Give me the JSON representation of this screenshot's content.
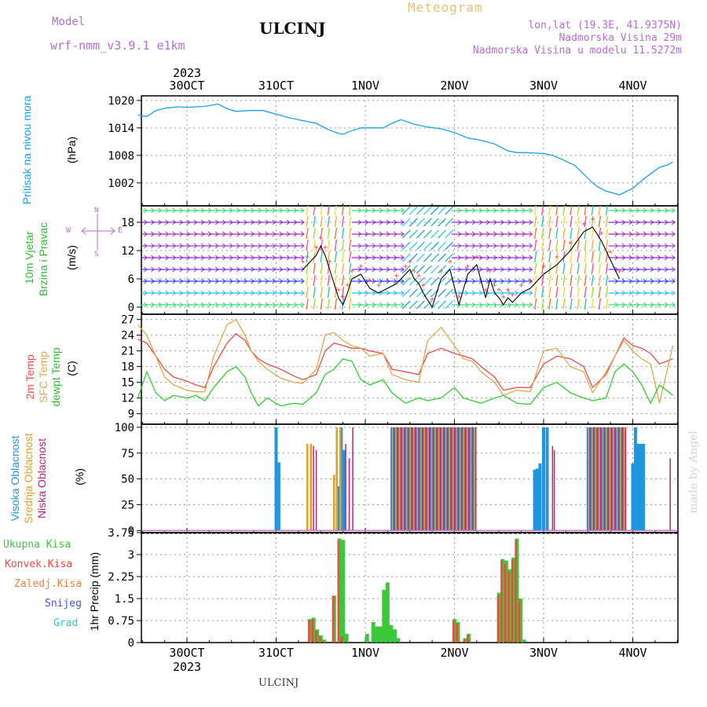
{
  "header": {
    "model_label": "Model",
    "model_name": "wrf-nmm_v3.9.1  e1km",
    "station": "ULCINJ",
    "product": "Meteogram",
    "lonlat": "lon,lat (19.3E, 41.9375N)",
    "elevation": "Nadmorska Visina 29m",
    "model_elevation": "Nadmorska Visina u modelu 11.5272m",
    "footer_station": "ULCINJ",
    "watermark": "made by Angel"
  },
  "time_axis": {
    "top_year": "2023",
    "bottom_year": "2023",
    "day_labels": [
      "30OCT",
      "31OCT",
      "1NOV",
      "2NOV",
      "3NOV",
      "4NOV"
    ]
  },
  "panel_labels": {
    "pressure": [
      "Pritisak na nivou mora",
      "(hPa)"
    ],
    "wind": [
      "10m Vjetar",
      "Brzina i Pravac",
      "(m/s)"
    ],
    "wind_compass": [
      "W",
      "E",
      "N",
      "S"
    ],
    "temp": [
      "2m Temp",
      "SFC Temp",
      "dewpt Temp",
      "(C)"
    ],
    "cloud": [
      "Visoka Oblacnost",
      "Srednja Oblacnost",
      "Niska Oblacnost",
      "(%)"
    ],
    "precip_axis": "1hr Precip (mm)",
    "precip_legend": [
      "Ukupna Kisa",
      "Konvek.Kisa",
      "Zaledj.Kisa",
      "Snijeg",
      "Grad"
    ]
  },
  "colors": {
    "pressure": "#1aa3e8",
    "t2m": "#f04a4a",
    "tsfc": "#e0a848",
    "dewpt": "#2fcf2f",
    "high_cloud": "#2196e0",
    "mid_cloud": "#e0a030",
    "low_cloud": "#c0207a",
    "total_rain": "#3bc83b",
    "conv_rain": "#ff4040",
    "frz_rain": "#f0803c",
    "snow": "#5050e0",
    "hail": "#30c8c8",
    "wind_speed": "#000000"
  },
  "chart_data": [
    {
      "type": "line",
      "name": "pressure",
      "ylabel": "(hPa)",
      "ylim": [
        997,
        1021
      ],
      "yticks": [
        1002,
        1008,
        1014,
        1020
      ],
      "x_unit": "days since 30OCT 00Z",
      "x": [
        -0.55,
        -0.45,
        -0.35,
        -0.25,
        -0.1,
        0,
        0.2,
        0.35,
        0.45,
        0.55,
        0.7,
        0.85,
        1.0,
        1.15,
        1.3,
        1.45,
        1.6,
        1.7,
        1.75,
        1.85,
        1.95,
        2.05,
        2.2,
        2.3,
        2.4,
        2.55,
        2.7,
        2.85,
        3.0,
        3.15,
        3.3,
        3.45,
        3.6,
        3.7,
        3.8,
        3.9,
        4.0,
        4.1,
        4.2,
        4.35,
        4.45,
        4.55,
        4.6,
        4.7,
        4.85,
        5.0,
        5.1,
        5.2,
        5.3,
        5.4,
        5.45
      ],
      "values": [
        1016.8,
        1016.5,
        1017.8,
        1018.3,
        1018.6,
        1018.5,
        1018.7,
        1019.2,
        1018.2,
        1017.6,
        1017.8,
        1017.8,
        1017.0,
        1016.2,
        1015.6,
        1015.0,
        1013.5,
        1012.8,
        1012.6,
        1013.4,
        1014.0,
        1014.0,
        1014.0,
        1015.0,
        1015.8,
        1014.8,
        1014.2,
        1013.8,
        1013.0,
        1011.8,
        1011.3,
        1010.5,
        1009.0,
        1008.6,
        1008.6,
        1008.5,
        1008.4,
        1008.0,
        1007.2,
        1005.8,
        1003.9,
        1002.0,
        1001.2,
        1000.2,
        999.4,
        1000.8,
        1002.5,
        1004.0,
        1005.4,
        1006.0,
        1006.6
      ]
    },
    {
      "type": "line",
      "name": "wind",
      "ylabel": "(m/s)",
      "ylim": [
        -1.5,
        21.5
      ],
      "yticks": [
        0,
        6,
        12,
        18
      ],
      "x": [
        1.3,
        1.35,
        1.45,
        1.5,
        1.55,
        1.6,
        1.7,
        1.75,
        1.8,
        1.85,
        1.95,
        2.05,
        2.15,
        2.25,
        2.35,
        2.45,
        2.5,
        2.55,
        2.6,
        2.65,
        2.75,
        2.85,
        2.95,
        3.05,
        3.15,
        3.25,
        3.35,
        3.4,
        3.45,
        3.5,
        3.55,
        3.6,
        3.65,
        3.75,
        3.85,
        4.0,
        4.15,
        4.3,
        4.45,
        4.55,
        4.65,
        4.75,
        4.85
      ],
      "values": [
        8,
        9,
        11,
        13,
        11,
        8,
        2,
        0.5,
        3,
        6,
        7,
        4,
        3,
        4,
        5,
        7,
        8,
        6,
        5,
        3,
        0,
        6,
        8,
        0.5,
        7,
        9,
        2,
        6,
        3,
        2,
        0.5,
        2,
        1,
        3,
        4,
        7,
        9,
        12,
        16,
        17,
        14,
        10,
        6
      ]
    },
    {
      "type": "line",
      "name": "temperature",
      "ylabel": "(C)",
      "ylim": [
        7,
        28
      ],
      "yticks": [
        9,
        12,
        15,
        18,
        21,
        24,
        27
      ],
      "x": [
        -0.55,
        -0.45,
        -0.35,
        -0.25,
        -0.15,
        0.0,
        0.1,
        0.2,
        0.3,
        0.45,
        0.55,
        0.65,
        0.72,
        0.8,
        0.9,
        1.05,
        1.2,
        1.3,
        1.45,
        1.55,
        1.65,
        1.75,
        1.85,
        1.95,
        2.05,
        2.2,
        2.3,
        2.45,
        2.6,
        2.7,
        2.85,
        3.0,
        3.1,
        3.2,
        3.3,
        3.45,
        3.55,
        3.7,
        3.85,
        4.0,
        4.15,
        4.3,
        4.45,
        4.55,
        4.7,
        4.8,
        4.9,
        5.0,
        5.1,
        5.2,
        5.3,
        5.45
      ],
      "series": [
        {
          "name": "2m Temp",
          "values": [
            23.2,
            22.5,
            20,
            17.5,
            16,
            15.2,
            14.5,
            14,
            18,
            22.5,
            24.3,
            23,
            21,
            19.5,
            18.5,
            17.5,
            16.2,
            15.5,
            16.5,
            21,
            22.5,
            22,
            21.5,
            21.5,
            21,
            20.5,
            17.5,
            17,
            16.5,
            20.5,
            21.5,
            20.5,
            20,
            19.5,
            18,
            16,
            13.5,
            14,
            14,
            18.5,
            20,
            19.5,
            18,
            14,
            16.5,
            20,
            23.5,
            22,
            21.5,
            20.5,
            18.5,
            19.5
          ]
        },
        {
          "name": "SFC Temp",
          "values": [
            26,
            24,
            20,
            16,
            14.5,
            13.5,
            13.2,
            13.2,
            20,
            26,
            27,
            24,
            21,
            19,
            17.5,
            15.8,
            15,
            14.8,
            17.5,
            24,
            24.5,
            23,
            22,
            21.5,
            20,
            20.5,
            16.5,
            15.5,
            15,
            23,
            25.5,
            22,
            19.5,
            19,
            17,
            15,
            12.5,
            13.5,
            13.2,
            21,
            21.5,
            18,
            17,
            13,
            17,
            20,
            23,
            21,
            19.5,
            18.5,
            11,
            22
          ]
        },
        {
          "name": "dewpt Temp",
          "values": [
            12,
            17,
            13,
            11.5,
            12.5,
            12,
            12.5,
            11.5,
            14,
            17,
            18,
            16,
            13,
            10.5,
            12,
            10.5,
            11,
            10.8,
            13,
            16.5,
            17.5,
            19.5,
            19,
            15.5,
            14.5,
            15.5,
            13,
            11,
            12,
            11.5,
            12,
            14,
            12,
            11.5,
            11,
            12,
            12.5,
            11,
            10.8,
            14,
            15,
            13,
            12,
            11.5,
            12,
            17,
            18.5,
            17,
            14.5,
            11,
            14.5,
            12.5
          ]
        }
      ]
    },
    {
      "type": "bar",
      "name": "cloud",
      "ylabel": "(%)",
      "ylim": [
        -2,
        103
      ],
      "yticks": [
        0,
        25,
        50,
        75,
        100
      ],
      "series": [
        {
          "name": "Visoka Oblacnost",
          "x": [
            1.0,
            1.03,
            1.7,
            1.73,
            1.76,
            2.3,
            2.34,
            2.38,
            2.42,
            2.46,
            2.5,
            2.54,
            2.58,
            2.62,
            2.66,
            2.7,
            2.74,
            2.78,
            2.82,
            2.86,
            2.9,
            2.94,
            2.98,
            3.02,
            3.06,
            3.1,
            3.14,
            3.18,
            3.22,
            3.9,
            3.93,
            3.96,
            4.0,
            4.04,
            4.5,
            4.54,
            4.58,
            4.62,
            4.66,
            4.7,
            4.74,
            4.78,
            4.82,
            4.86,
            4.9,
            5.0,
            5.03,
            5.06,
            5.09,
            5.12
          ],
          "values": [
            100,
            66,
            43,
            100,
            78,
            100,
            100,
            100,
            100,
            100,
            100,
            100,
            100,
            100,
            100,
            100,
            100,
            100,
            100,
            100,
            100,
            100,
            100,
            100,
            100,
            100,
            100,
            100,
            100,
            59,
            60,
            65,
            100,
            100,
            100,
            100,
            100,
            100,
            100,
            100,
            100,
            100,
            100,
            100,
            100,
            65,
            100,
            84,
            84,
            84
          ]
        },
        {
          "name": "Srednja Oblacnost",
          "x": [
            1.35,
            1.39,
            1.65,
            1.68,
            1.72,
            2.31,
            2.35,
            2.39,
            2.43,
            2.47,
            2.51,
            2.55,
            2.59,
            2.63,
            2.67,
            2.71,
            2.75,
            2.79,
            2.83,
            2.87,
            2.91,
            2.95,
            2.99,
            3.03,
            3.07,
            3.11,
            3.15,
            3.19,
            3.23,
            4.51,
            4.55,
            4.59,
            4.63,
            4.67,
            4.71,
            4.75,
            4.79,
            4.83,
            4.87,
            4.91
          ],
          "values": [
            84,
            84,
            54,
            100,
            100,
            100,
            100,
            100,
            100,
            100,
            100,
            100,
            100,
            100,
            100,
            100,
            100,
            100,
            100,
            100,
            100,
            100,
            100,
            100,
            100,
            100,
            100,
            100,
            100,
            100,
            100,
            100,
            100,
            100,
            100,
            100,
            100,
            100,
            100,
            100
          ]
        },
        {
          "name": "Niska Oblacnost",
          "x": [
            1.42,
            1.45,
            1.78,
            1.82,
            1.86,
            2.32,
            2.36,
            2.4,
            2.44,
            2.48,
            2.52,
            2.56,
            2.6,
            2.64,
            2.68,
            2.72,
            2.76,
            2.8,
            2.84,
            2.88,
            2.92,
            2.96,
            3.0,
            3.04,
            3.08,
            3.12,
            3.16,
            3.2,
            3.24,
            4.1,
            4.12,
            4.52,
            4.56,
            4.6,
            4.64,
            4.68,
            4.72,
            4.76,
            4.8,
            4.84,
            4.88,
            4.92,
            5.42
          ],
          "values": [
            82,
            78,
            84,
            70,
            100,
            100,
            100,
            100,
            100,
            100,
            100,
            100,
            100,
            100,
            100,
            100,
            100,
            100,
            100,
            100,
            100,
            100,
            100,
            100,
            100,
            100,
            100,
            100,
            100,
            82,
            78,
            100,
            100,
            100,
            100,
            100,
            100,
            100,
            100,
            100,
            100,
            100,
            70
          ]
        }
      ]
    },
    {
      "type": "bar",
      "name": "precip",
      "ylabel": "1hr Precip (mm)",
      "ylim": [
        0,
        3.75
      ],
      "yticks": [
        0,
        0.75,
        1.5,
        2.25,
        3,
        3.75
      ],
      "ytick_labels": [
        "0",
        "0.75",
        "1.5",
        "2.25",
        "3",
        "3.75"
      ],
      "x": [
        1.38,
        1.42,
        1.46,
        1.5,
        1.54,
        1.65,
        1.71,
        1.75,
        1.79,
        2.02,
        2.09,
        2.13,
        2.17,
        2.21,
        2.25,
        2.29,
        2.33,
        2.37,
        3.0,
        3.04,
        3.12,
        3.16,
        3.5,
        3.54,
        3.58,
        3.62,
        3.66,
        3.7,
        3.74,
        3.78
      ],
      "values": [
        0.8,
        0.85,
        0.45,
        0.25,
        0.1,
        1.6,
        3.55,
        3.5,
        0.3,
        0.3,
        0.7,
        0.55,
        0.55,
        1.8,
        2.05,
        0.6,
        0.45,
        0.15,
        0.8,
        0.7,
        0.15,
        0.3,
        1.7,
        2.85,
        2.8,
        2.5,
        2.9,
        3.55,
        1.5,
        0.1
      ],
      "convective": [
        0.75,
        0.8,
        0.4,
        0.2,
        0.05,
        1.6,
        3.5,
        0.2,
        0,
        0,
        0,
        0,
        0,
        0,
        0,
        0,
        0,
        0,
        0.75,
        0.65,
        0.1,
        0.25,
        1.6,
        2.8,
        2.7,
        2.4,
        2.8,
        3.5,
        1.45,
        0
      ]
    }
  ]
}
